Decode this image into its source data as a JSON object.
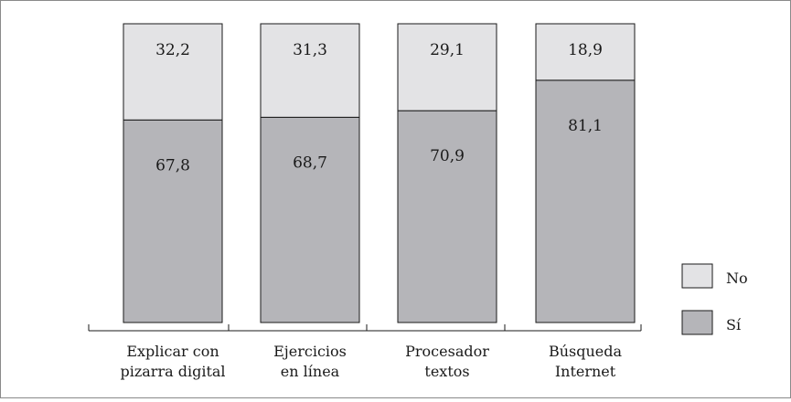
{
  "chart_data": {
    "type": "bar",
    "stacked": true,
    "categories": [
      [
        "Explicar con",
        "pizarra digital"
      ],
      [
        "Ejercicios",
        "en línea"
      ],
      [
        "Procesador",
        "textos"
      ],
      [
        "Búsqueda",
        "Internet"
      ]
    ],
    "series": [
      {
        "name": "Sí",
        "values": [
          67.8,
          68.7,
          70.9,
          81.1
        ],
        "labels": [
          "67,8",
          "68,7",
          "70,9",
          "81,1"
        ],
        "color": "#b5b5b9"
      },
      {
        "name": "No",
        "values": [
          32.2,
          31.3,
          29.1,
          18.9
        ],
        "labels": [
          "32,2",
          "31,3",
          "29,1",
          "18,9"
        ],
        "color": "#e3e3e5"
      }
    ],
    "ylim": [
      0,
      100
    ],
    "legend": {
      "position": "right",
      "order": [
        "No",
        "Sí"
      ]
    }
  }
}
